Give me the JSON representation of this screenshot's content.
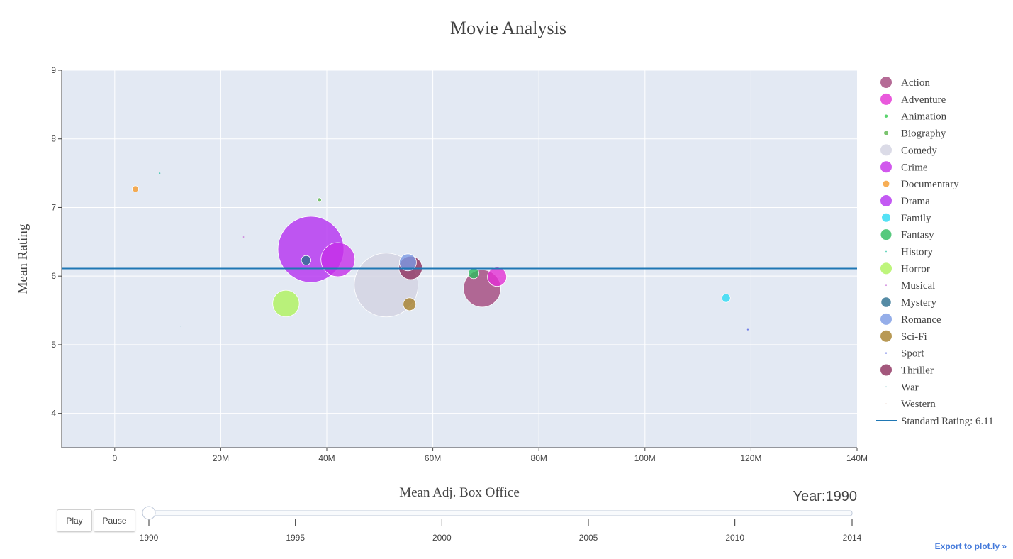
{
  "chart_data": {
    "type": "scatter",
    "title": "Movie Analysis",
    "xlabel": "Mean Adj. Box Office",
    "ylabel": "Mean Rating",
    "xlim": [
      -10000000,
      140000000
    ],
    "ylim": [
      3.5,
      9
    ],
    "x_ticks": [
      {
        "value": 0,
        "label": "0"
      },
      {
        "value": 20000000,
        "label": "20M"
      },
      {
        "value": 40000000,
        "label": "40M"
      },
      {
        "value": 60000000,
        "label": "60M"
      },
      {
        "value": 80000000,
        "label": "80M"
      },
      {
        "value": 100000000,
        "label": "100M"
      },
      {
        "value": 120000000,
        "label": "120M"
      },
      {
        "value": 140000000,
        "label": "140M"
      }
    ],
    "y_ticks": [
      {
        "value": 4,
        "label": "4"
      },
      {
        "value": 5,
        "label": "5"
      },
      {
        "value": 6,
        "label": "6"
      },
      {
        "value": 7,
        "label": "7"
      },
      {
        "value": 8,
        "label": "8"
      },
      {
        "value": 9,
        "label": "9"
      }
    ],
    "standard_rating": {
      "label": "Standard Rating: 6.11",
      "value": 6.11,
      "color": "#1f77b4"
    },
    "legend_position": "right",
    "series": [
      {
        "name": "Action",
        "color": "#a3467c",
        "x": 69300000,
        "y": 5.82,
        "size": 35
      },
      {
        "name": "Adventure",
        "color": "#e42fd3",
        "x": 72100000,
        "y": 5.99,
        "size": 18
      },
      {
        "name": "Animation",
        "color": "#31c94a",
        "x": null,
        "y": null,
        "size": 3
      },
      {
        "name": "Biography",
        "color": "#5ab54b",
        "x": 38600000,
        "y": 7.11,
        "size": 4
      },
      {
        "name": "Comedy",
        "color": "#d2d2e1",
        "x": 51200000,
        "y": 5.87,
        "size": 60
      },
      {
        "name": "Crime",
        "color": "#c62ee8",
        "x": 42100000,
        "y": 6.24,
        "size": 32
      },
      {
        "name": "Documentary",
        "color": "#f59a2b",
        "x": 3900000,
        "y": 7.27,
        "size": 6
      },
      {
        "name": "Drama",
        "color": "#b42ff0",
        "x": 37000000,
        "y": 6.39,
        "size": 62
      },
      {
        "name": "Family",
        "color": "#2ad9f2",
        "x": 115300000,
        "y": 5.68,
        "size": 8
      },
      {
        "name": "Fantasy",
        "color": "#2dbc5c",
        "x": 67700000,
        "y": 6.04,
        "size": 10
      },
      {
        "name": "History",
        "color": "#1fbf9f",
        "x": 8500000,
        "y": 7.5,
        "size": 1.2
      },
      {
        "name": "Horror",
        "color": "#aef25b",
        "x": 32300000,
        "y": 5.6,
        "size": 25
      },
      {
        "name": "Musical",
        "color": "#c56ad6",
        "x": 24300000,
        "y": 6.57,
        "size": 1.2
      },
      {
        "name": "Mystery",
        "color": "#2a6e8e",
        "x": 36100000,
        "y": 6.23,
        "size": 9
      },
      {
        "name": "Romance",
        "color": "#7b9ae4",
        "x": 55300000,
        "y": 6.2,
        "size": 16
      },
      {
        "name": "Sci-Fi",
        "color": "#a67f2b",
        "x": 55600000,
        "y": 5.59,
        "size": 12
      },
      {
        "name": "Sport",
        "color": "#5463e4",
        "x": 119400000,
        "y": 5.22,
        "size": 1.5
      },
      {
        "name": "Thriller",
        "color": "#8c2d5b",
        "x": 55800000,
        "y": 6.12,
        "size": 22
      },
      {
        "name": "War",
        "color": "#3ba6a2",
        "x": 12500000,
        "y": 5.27,
        "size": 1
      },
      {
        "name": "Western",
        "color": "#e6c6b6",
        "x": null,
        "y": null,
        "size": 1
      }
    ]
  },
  "slider": {
    "current_label": "Year:1990",
    "current_value": 1990,
    "min": 1990,
    "max": 2014,
    "ticks": [
      "1990",
      "1995",
      "2000",
      "2005",
      "2010",
      "2014"
    ]
  },
  "controls": {
    "play_label": "Play",
    "pause_label": "Pause"
  },
  "export": {
    "label": "Export to plot.ly »"
  }
}
